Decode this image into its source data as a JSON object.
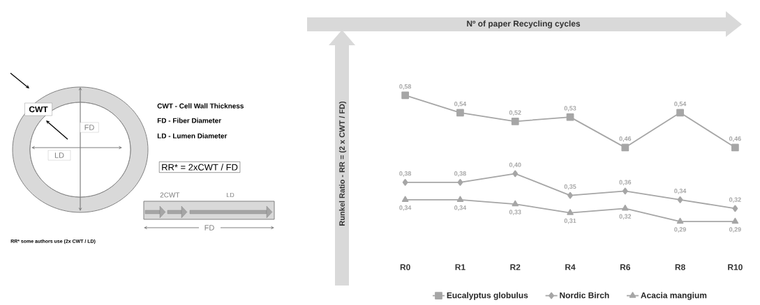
{
  "chart_data": [
    {
      "type": "other",
      "annotations": [
        "CWT",
        "FD",
        "LD",
        "CWT - Cell Wall Thickness",
        "FD - Fiber Diameter",
        "LD - Lumen Diameter",
        "RR* = 2xCWT / FD",
        "2CWT",
        "LD",
        "FD",
        "RR* some authors use (2x CWT / LD)"
      ]
    },
    {
      "type": "line",
      "xlabel": "Nº of paper Recycling cycles",
      "ylabel": "Runkel Ratio - RR = (2 x CWT / FD)",
      "categories": [
        "R0",
        "R1",
        "R2",
        "R4",
        "R6",
        "R8",
        "R10"
      ],
      "legend": "bottom",
      "series": [
        {
          "name": "Eucalyptus globulus",
          "color": "#a6a6a6",
          "marker": "square",
          "values": [
            0.58,
            0.54,
            0.52,
            0.53,
            0.46,
            0.54,
            0.46
          ],
          "value_labels": [
            "0,58",
            "0,54",
            "0,52",
            "0,53",
            "0,46",
            "0,54",
            "0,46"
          ]
        },
        {
          "name": "Nordic Birch",
          "color": "#a6a6a6",
          "marker": "diamond",
          "values": [
            0.38,
            0.38,
            0.4,
            0.35,
            0.36,
            0.34,
            0.32
          ],
          "value_labels": [
            "0,38",
            "0,38",
            "0,40",
            "0,35",
            "0,36",
            "0,34",
            "0,32"
          ]
        },
        {
          "name": "Acacia mangium",
          "color": "#a6a6a6",
          "marker": "triangle",
          "values": [
            0.34,
            0.34,
            0.33,
            0.31,
            0.32,
            0.29,
            0.29
          ],
          "value_labels": [
            "0,34",
            "0,34",
            "0,33",
            "0,31",
            "0,32",
            "0,29",
            "0,29"
          ]
        }
      ]
    }
  ]
}
